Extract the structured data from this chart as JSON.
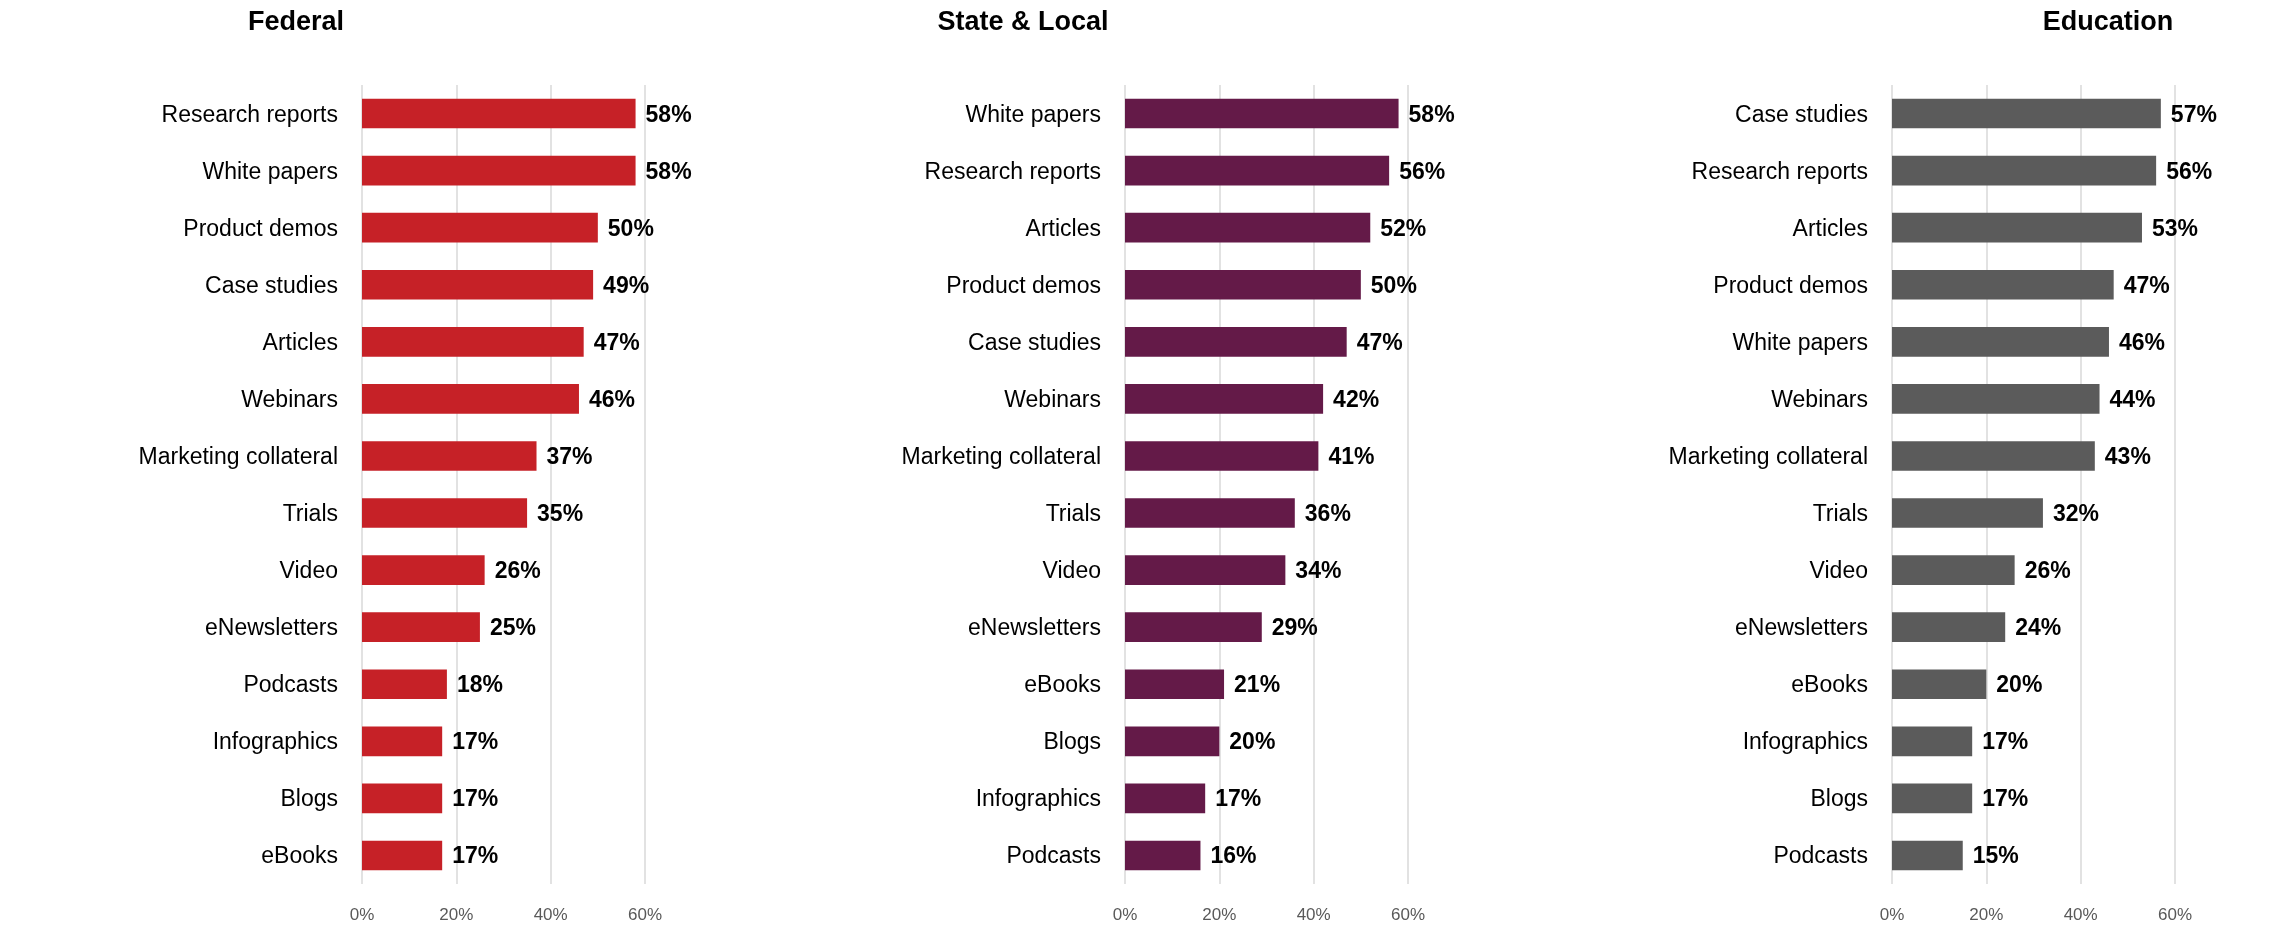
{
  "chart_data": [
    {
      "type": "bar",
      "orientation": "horizontal",
      "title": "Federal",
      "color": "#c62127",
      "categories": [
        "Research reports",
        "White papers",
        "Product demos",
        "Case studies",
        "Articles",
        "Webinars",
        "Marketing collateral",
        "Trials",
        "Video",
        "eNewsletters",
        "Podcasts",
        "Infographics",
        "Blogs",
        "eBooks"
      ],
      "values": [
        58,
        58,
        50,
        49,
        47,
        46,
        37,
        35,
        26,
        25,
        18,
        17,
        17,
        17
      ],
      "value_labels": [
        "58%",
        "58%",
        "50%",
        "49%",
        "47%",
        "46%",
        "37%",
        "35%",
        "26%",
        "25%",
        "18%",
        "17%",
        "17%",
        "17%"
      ],
      "xlim": [
        0,
        60
      ],
      "xticks": [
        {
          "value": 0,
          "label": "0%"
        },
        {
          "value": 20,
          "label": "20%"
        },
        {
          "value": 40,
          "label": "40%"
        },
        {
          "value": 60,
          "label": "60%"
        }
      ],
      "grid": "x"
    },
    {
      "type": "bar",
      "orientation": "horizontal",
      "title": "State & Local",
      "color": "#641a48",
      "categories": [
        "White papers",
        "Research reports",
        "Articles",
        "Product demos",
        "Case studies",
        "Webinars",
        "Marketing collateral",
        "Trials",
        "Video",
        "eNewsletters",
        "eBooks",
        "Blogs",
        "Infographics",
        "Podcasts"
      ],
      "values": [
        58,
        56,
        52,
        50,
        47,
        42,
        41,
        36,
        34,
        29,
        21,
        20,
        17,
        16
      ],
      "value_labels": [
        "58%",
        "56%",
        "52%",
        "50%",
        "47%",
        "42%",
        "41%",
        "36%",
        "34%",
        "29%",
        "21%",
        "20%",
        "17%",
        "16%"
      ],
      "xlim": [
        0,
        60
      ],
      "xticks": [
        {
          "value": 0,
          "label": "0%"
        },
        {
          "value": 20,
          "label": "20%"
        },
        {
          "value": 40,
          "label": "40%"
        },
        {
          "value": 60,
          "label": "60%"
        }
      ],
      "grid": "x"
    },
    {
      "type": "bar",
      "orientation": "horizontal",
      "title": "Education",
      "color": "#5b5b5b",
      "categories": [
        "Case studies",
        "Research reports",
        "Articles",
        "Product demos",
        "White papers",
        "Webinars",
        "Marketing collateral",
        "Trials",
        "Video",
        "eNewsletters",
        "eBooks",
        "Infographics",
        "Blogs",
        "Podcasts"
      ],
      "values": [
        57,
        56,
        53,
        47,
        46,
        44,
        43,
        32,
        26,
        24,
        20,
        17,
        17,
        15
      ],
      "value_labels": [
        "57%",
        "56%",
        "53%",
        "47%",
        "46%",
        "44%",
        "43%",
        "32%",
        "26%",
        "24%",
        "20%",
        "17%",
        "17%",
        "15%"
      ],
      "xlim": [
        0,
        60
      ],
      "xticks": [
        {
          "value": 0,
          "label": "0%"
        },
        {
          "value": 20,
          "label": "20%"
        },
        {
          "value": 40,
          "label": "40%"
        },
        {
          "value": 60,
          "label": "60%"
        }
      ],
      "grid": "x"
    }
  ]
}
